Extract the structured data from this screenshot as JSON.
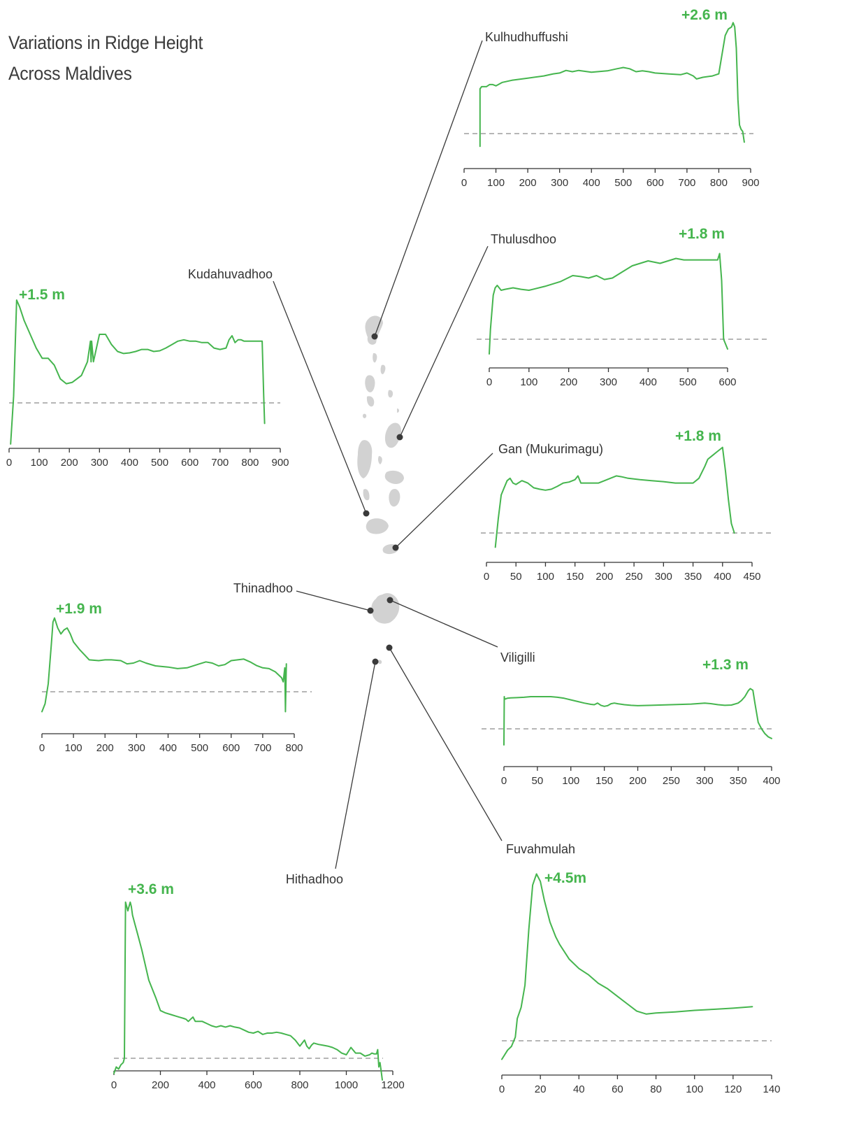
{
  "title": [
    "Variations in Ridge Height",
    "Across Maldives"
  ],
  "colors": {
    "profile": "#45b54e",
    "peak_label": "#45b54e",
    "leader": "#3a3a3a",
    "island": "#d2d2d2",
    "baseline": "#8a8a8a",
    "axis": "#333333"
  },
  "chart_data": [
    {
      "type": "line",
      "site": "Kulhudhuffushi",
      "peak_label": "+2.6 m",
      "xticks": [
        0,
        100,
        200,
        300,
        400,
        500,
        600,
        700,
        800,
        900
      ],
      "xlim": [
        0,
        900
      ],
      "x": [
        50,
        50,
        55,
        70,
        80,
        90,
        100,
        120,
        150,
        200,
        250,
        280,
        300,
        320,
        340,
        360,
        400,
        450,
        480,
        500,
        520,
        540,
        560,
        580,
        600,
        640,
        680,
        700,
        720,
        730,
        750,
        780,
        800,
        810,
        820,
        830,
        840,
        845,
        850,
        855,
        860,
        865,
        870,
        875,
        880
      ],
      "y": [
        -0.3,
        1.05,
        1.1,
        1.1,
        1.15,
        1.15,
        1.12,
        1.2,
        1.25,
        1.3,
        1.35,
        1.4,
        1.42,
        1.48,
        1.45,
        1.48,
        1.44,
        1.47,
        1.52,
        1.55,
        1.52,
        1.45,
        1.47,
        1.45,
        1.42,
        1.4,
        1.38,
        1.42,
        1.35,
        1.28,
        1.32,
        1.35,
        1.4,
        1.85,
        2.3,
        2.45,
        2.5,
        2.6,
        2.5,
        2.0,
        0.8,
        0.2,
        0.1,
        0.05,
        -0.2
      ]
    },
    {
      "type": "line",
      "site": "Thulusdhoo",
      "peak_label": "+1.8 m",
      "xticks": [
        0,
        100,
        200,
        300,
        400,
        500,
        600
      ],
      "xlim": [
        0,
        600
      ],
      "x": [
        0,
        3,
        10,
        15,
        20,
        25,
        30,
        40,
        60,
        80,
        100,
        140,
        180,
        210,
        230,
        250,
        270,
        290,
        310,
        330,
        360,
        400,
        430,
        450,
        470,
        490,
        520,
        560,
        575,
        580,
        585,
        590,
        600
      ],
      "y": [
        -0.3,
        0.2,
        0.9,
        1.05,
        1.1,
        1.05,
        1.0,
        1.02,
        1.05,
        1.02,
        1.0,
        1.08,
        1.18,
        1.3,
        1.28,
        1.25,
        1.3,
        1.22,
        1.25,
        1.35,
        1.5,
        1.6,
        1.55,
        1.6,
        1.65,
        1.62,
        1.62,
        1.62,
        1.62,
        1.75,
        1.2,
        0.0,
        -0.2
      ]
    },
    {
      "type": "line",
      "site": "Kudahuvadhoo",
      "peak_label": "+1.5 m",
      "xticks": [
        0,
        100,
        200,
        300,
        400,
        500,
        600,
        700,
        800,
        900
      ],
      "xlim": [
        0,
        900
      ],
      "x": [
        5,
        15,
        25,
        35,
        50,
        70,
        90,
        110,
        130,
        150,
        170,
        190,
        210,
        240,
        260,
        270,
        272,
        274,
        280,
        290,
        300,
        320,
        340,
        360,
        380,
        400,
        420,
        440,
        460,
        480,
        500,
        520,
        540,
        560,
        580,
        600,
        620,
        640,
        660,
        680,
        700,
        720,
        730,
        740,
        750,
        760,
        770,
        780,
        800,
        820,
        840,
        845,
        848
      ],
      "y": [
        -0.6,
        0.1,
        1.5,
        1.4,
        1.2,
        1.0,
        0.8,
        0.65,
        0.65,
        0.55,
        0.35,
        0.28,
        0.3,
        0.4,
        0.6,
        0.9,
        0.6,
        0.9,
        0.6,
        0.8,
        1.0,
        1.0,
        0.85,
        0.75,
        0.72,
        0.73,
        0.75,
        0.78,
        0.78,
        0.75,
        0.76,
        0.8,
        0.85,
        0.9,
        0.92,
        0.9,
        0.9,
        0.88,
        0.88,
        0.8,
        0.78,
        0.8,
        0.92,
        0.98,
        0.88,
        0.92,
        0.92,
        0.9,
        0.9,
        0.9,
        0.9,
        0.1,
        -0.3
      ]
    },
    {
      "type": "line",
      "site": "Gan (Mukurimagu)",
      "peak_label": "+1.8 m",
      "xticks": [
        0,
        50,
        100,
        150,
        200,
        250,
        300,
        350,
        400,
        450
      ],
      "xlim": [
        0,
        450
      ],
      "x": [
        15,
        20,
        25,
        30,
        35,
        40,
        45,
        50,
        60,
        70,
        80,
        90,
        100,
        110,
        120,
        130,
        140,
        150,
        155,
        160,
        170,
        180,
        190,
        200,
        210,
        220,
        230,
        240,
        260,
        280,
        300,
        320,
        340,
        350,
        360,
        370,
        375,
        380,
        385,
        390,
        395,
        400,
        405,
        410,
        415,
        420
      ],
      "y": [
        -0.3,
        0.3,
        0.8,
        0.95,
        1.1,
        1.15,
        1.05,
        1.02,
        1.1,
        1.05,
        0.95,
        0.92,
        0.9,
        0.92,
        0.98,
        1.05,
        1.07,
        1.12,
        1.2,
        1.05,
        1.05,
        1.05,
        1.05,
        1.1,
        1.15,
        1.2,
        1.18,
        1.15,
        1.12,
        1.1,
        1.08,
        1.05,
        1.05,
        1.05,
        1.15,
        1.4,
        1.55,
        1.6,
        1.65,
        1.7,
        1.75,
        1.8,
        1.3,
        0.7,
        0.2,
        0.0
      ]
    },
    {
      "type": "line",
      "site": "Thinadhoo",
      "peak_label": "+1.9 m",
      "xticks": [
        0,
        100,
        200,
        300,
        400,
        500,
        600,
        700,
        800
      ],
      "xlim": [
        0,
        800
      ],
      "x": [
        0,
        10,
        20,
        30,
        35,
        40,
        50,
        60,
        70,
        80,
        90,
        100,
        120,
        150,
        180,
        200,
        220,
        250,
        270,
        290,
        310,
        330,
        360,
        400,
        430,
        460,
        500,
        520,
        540,
        560,
        580,
        600,
        620,
        640,
        660,
        680,
        700,
        720,
        740,
        760,
        765,
        770,
        772,
        775
      ],
      "y": [
        -0.5,
        -0.3,
        0.2,
        1.2,
        1.75,
        1.85,
        1.6,
        1.45,
        1.55,
        1.6,
        1.45,
        1.25,
        1.05,
        0.8,
        0.78,
        0.8,
        0.8,
        0.78,
        0.7,
        0.72,
        0.78,
        0.72,
        0.65,
        0.62,
        0.58,
        0.6,
        0.7,
        0.75,
        0.72,
        0.65,
        0.68,
        0.78,
        0.8,
        0.82,
        0.75,
        0.66,
        0.6,
        0.58,
        0.5,
        0.35,
        0.25,
        0.6,
        -0.5,
        0.7
      ]
    },
    {
      "type": "line",
      "site": "Viligilli",
      "peak_label": "+1.3 m",
      "xticks": [
        0,
        50,
        100,
        150,
        200,
        250,
        300,
        350,
        400
      ],
      "xlim": [
        0,
        400
      ],
      "x": [
        0,
        0.5,
        1,
        5,
        10,
        20,
        30,
        40,
        50,
        70,
        80,
        90,
        100,
        110,
        120,
        130,
        135,
        140,
        145,
        150,
        155,
        160,
        165,
        170,
        180,
        190,
        200,
        220,
        250,
        280,
        300,
        310,
        320,
        330,
        340,
        350,
        355,
        360,
        365,
        368,
        372,
        375,
        380,
        385,
        390,
        395,
        400
      ],
      "y": [
        -0.5,
        1.0,
        0.92,
        0.95,
        0.96,
        0.97,
        0.98,
        1.0,
        1.0,
        1.0,
        0.98,
        0.95,
        0.9,
        0.85,
        0.8,
        0.76,
        0.75,
        0.8,
        0.73,
        0.7,
        0.72,
        0.78,
        0.8,
        0.78,
        0.75,
        0.73,
        0.72,
        0.73,
        0.75,
        0.77,
        0.8,
        0.78,
        0.75,
        0.73,
        0.74,
        0.8,
        0.88,
        1.0,
        1.18,
        1.25,
        1.2,
        0.8,
        0.2,
        0.0,
        -0.15,
        -0.25,
        -0.3
      ]
    },
    {
      "type": "line",
      "site": "Hithadhoo",
      "peak_label": "+3.6 m",
      "xticks": [
        0,
        200,
        400,
        600,
        800,
        1000,
        1200
      ],
      "xlim": [
        0,
        1200
      ],
      "x": [
        0,
        10,
        20,
        30,
        40,
        45,
        50,
        60,
        70,
        75,
        80,
        90,
        100,
        120,
        150,
        180,
        200,
        220,
        250,
        280,
        300,
        310,
        320,
        330,
        340,
        350,
        380,
        400,
        420,
        440,
        460,
        480,
        500,
        520,
        540,
        560,
        580,
        600,
        620,
        640,
        660,
        680,
        700,
        720,
        740,
        760,
        780,
        800,
        820,
        830,
        840,
        850,
        860,
        880,
        900,
        920,
        940,
        960,
        980,
        1000,
        1020,
        1040,
        1060,
        1080,
        1100,
        1110,
        1120,
        1130,
        1135,
        1140,
        1145,
        1150,
        1155
      ],
      "y": [
        -0.35,
        -0.2,
        -0.25,
        -0.15,
        -0.1,
        0.0,
        3.6,
        3.4,
        3.6,
        3.5,
        3.3,
        3.1,
        2.9,
        2.5,
        1.8,
        1.4,
        1.1,
        1.05,
        1.0,
        0.95,
        0.92,
        0.9,
        0.85,
        0.9,
        0.95,
        0.85,
        0.85,
        0.8,
        0.75,
        0.72,
        0.75,
        0.72,
        0.75,
        0.72,
        0.7,
        0.65,
        0.6,
        0.58,
        0.62,
        0.55,
        0.58,
        0.58,
        0.6,
        0.58,
        0.55,
        0.52,
        0.42,
        0.28,
        0.42,
        0.28,
        0.22,
        0.3,
        0.35,
        0.32,
        0.3,
        0.28,
        0.25,
        0.2,
        0.12,
        0.08,
        0.25,
        0.12,
        0.12,
        0.05,
        0.08,
        0.12,
        0.1,
        0.1,
        0.2,
        -0.2,
        -0.1,
        -0.3,
        -0.5
      ]
    },
    {
      "type": "line",
      "site": "Fuvahmulah",
      "peak_label": "+4.5m",
      "xticks": [
        0,
        20,
        40,
        60,
        80,
        100,
        120,
        140
      ],
      "xlim": [
        0,
        140
      ],
      "x": [
        0,
        3,
        5,
        7,
        8,
        10,
        12,
        14,
        16,
        18,
        20,
        22,
        25,
        28,
        30,
        35,
        40,
        45,
        50,
        55,
        60,
        65,
        70,
        75,
        80,
        90,
        100,
        110,
        120,
        130
      ],
      "y": [
        -0.5,
        -0.25,
        -0.15,
        0.1,
        0.6,
        0.9,
        1.5,
        3.0,
        4.2,
        4.5,
        4.3,
        3.8,
        3.2,
        2.8,
        2.6,
        2.2,
        1.95,
        1.78,
        1.55,
        1.4,
        1.2,
        1.0,
        0.8,
        0.72,
        0.75,
        0.78,
        0.82,
        0.85,
        0.88,
        0.92
      ]
    }
  ]
}
